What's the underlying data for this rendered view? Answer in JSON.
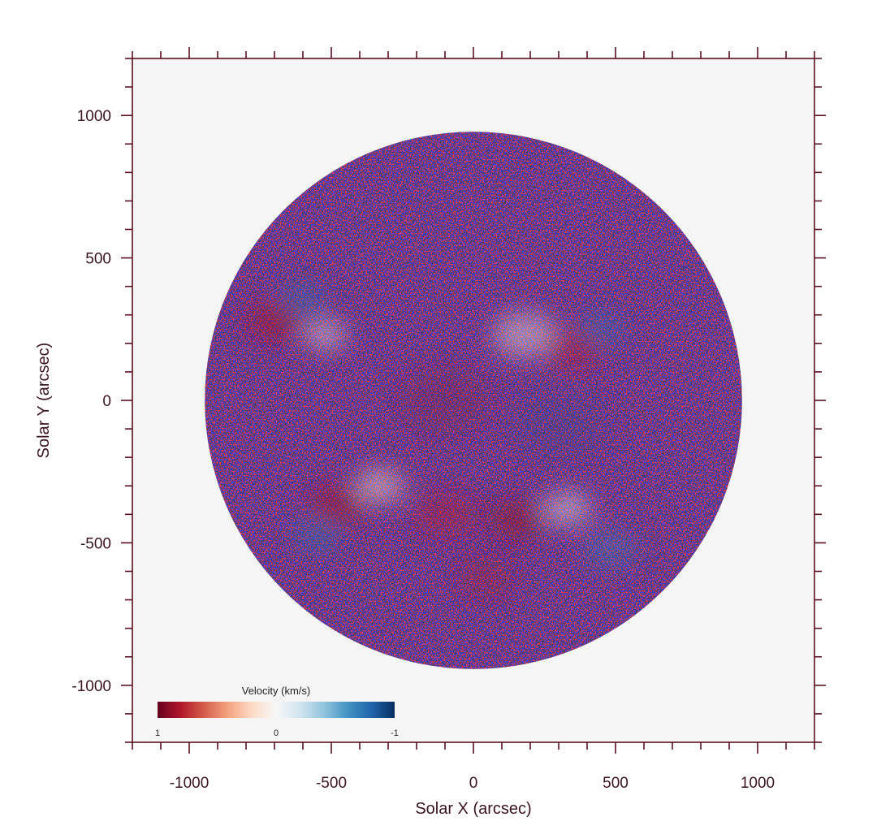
{
  "figure": {
    "xaxis": {
      "label": "Solar X (arcsec)",
      "range": [
        -1200,
        1200
      ],
      "ticks": [
        {
          "value": -1000,
          "label": "-1000"
        },
        {
          "value": -500,
          "label": "-500"
        },
        {
          "value": 0,
          "label": "0"
        },
        {
          "value": 500,
          "label": "500"
        },
        {
          "value": 1000,
          "label": "1000"
        }
      ],
      "minor_step": 100
    },
    "yaxis": {
      "label": "Solar Y (arcsec)",
      "range": [
        -1200,
        1200
      ],
      "ticks": [
        {
          "value": 1000,
          "label": "1000"
        },
        {
          "value": 500,
          "label": "500"
        },
        {
          "value": 0,
          "label": "0"
        },
        {
          "value": -500,
          "label": "-500"
        },
        {
          "value": -1000,
          "label": "-1000"
        }
      ],
      "minor_step": 100
    },
    "solar_disk": {
      "center_arcsec": [
        0,
        0
      ],
      "radius_arcsec": 945
    },
    "colorbar": {
      "title": "Velocity (km/s)",
      "ticks": [
        {
          "value": 1,
          "label": "1"
        },
        {
          "value": 0,
          "label": "0"
        },
        {
          "value": -1,
          "label": "-1"
        }
      ],
      "colors": [
        "#67001f",
        "#b2182b",
        "#d6604d",
        "#f4a582",
        "#fddbc7",
        "#f7f7f7",
        "#d1e5f0",
        "#92c5de",
        "#4393c3",
        "#2166ac",
        "#053061"
      ]
    },
    "colors": {
      "frame": "#5a1020",
      "background": "#f5f5f5",
      "text": "#3a1420"
    }
  }
}
